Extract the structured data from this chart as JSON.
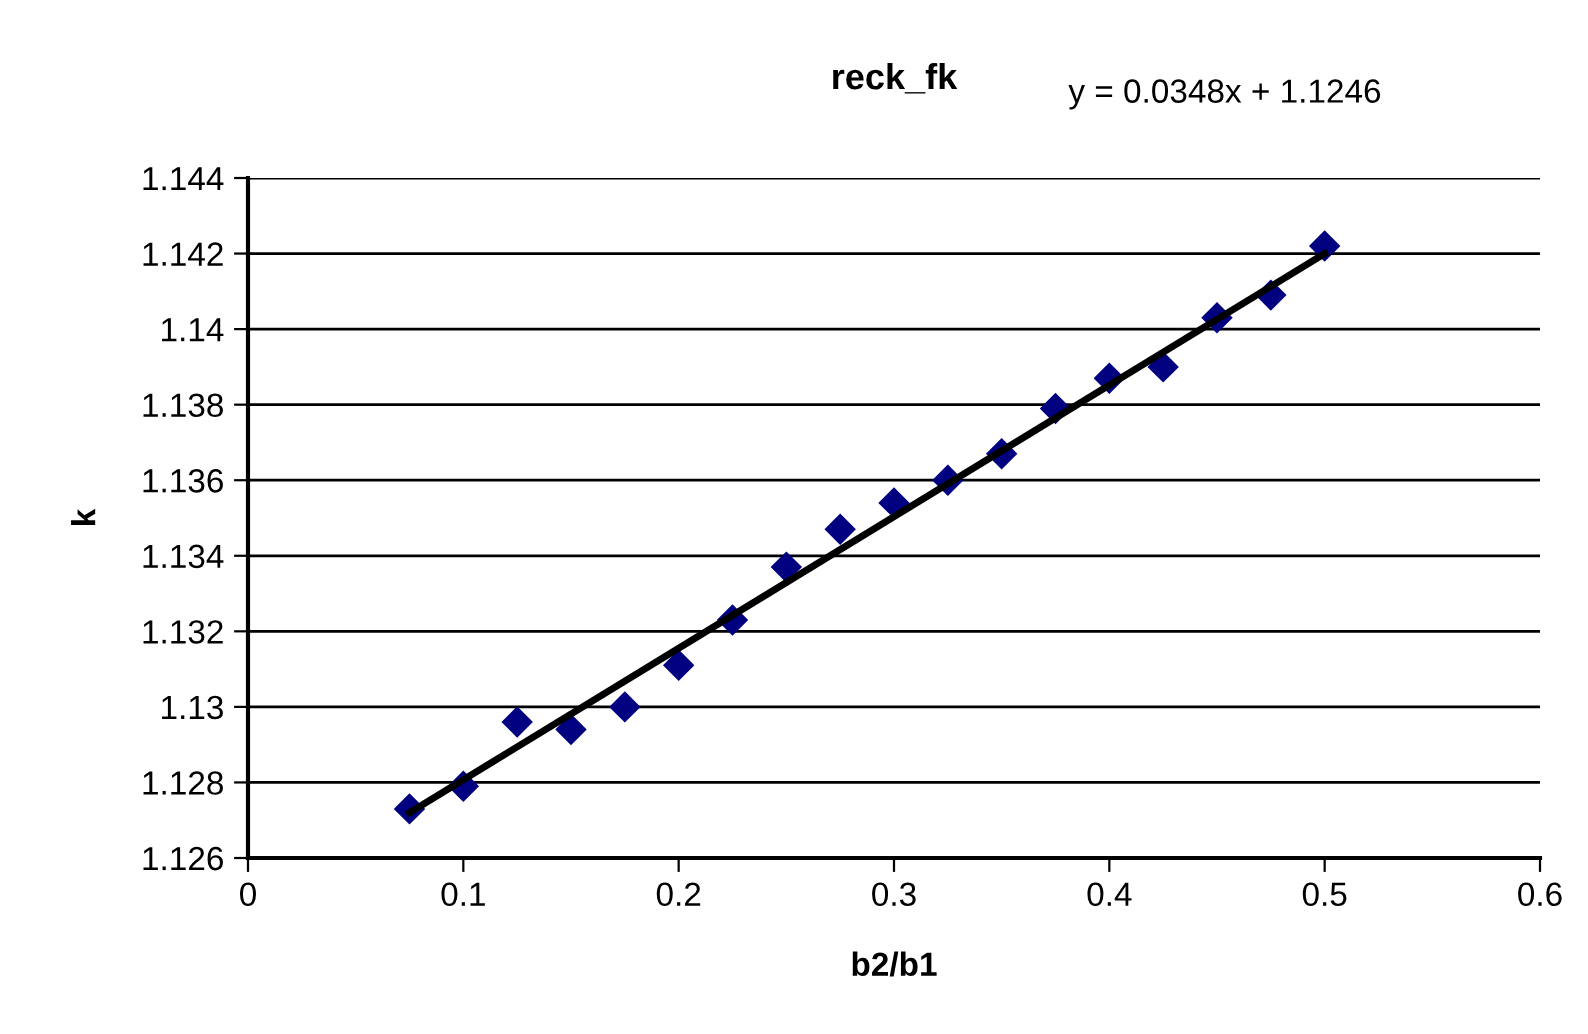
{
  "chart_data": {
    "type": "scatter",
    "title": "reck_fk",
    "xlabel": "b2/b1",
    "ylabel": "k",
    "annotations": [
      "y = 0.0348x + 1.1246"
    ],
    "x": [
      0.075,
      0.1,
      0.125,
      0.15,
      0.175,
      0.2,
      0.225,
      0.25,
      0.275,
      0.3,
      0.325,
      0.35,
      0.375,
      0.4,
      0.425,
      0.45,
      0.475,
      0.5
    ],
    "series": [
      {
        "color": "#000080",
        "marker": "diamond",
        "values": [
          1.1273,
          1.1279,
          1.1296,
          1.1294,
          1.13,
          1.1311,
          1.1323,
          1.1337,
          1.1347,
          1.1354,
          1.136,
          1.1367,
          1.1379,
          1.1387,
          1.139,
          1.1403,
          1.1409,
          1.1422
        ]
      },
      {
        "type": "line",
        "color": "#000000",
        "marker": "none",
        "line_style": "solid",
        "x": [
          0.075,
          0.5
        ],
        "values": [
          1.1272,
          1.142
        ]
      }
    ],
    "xlim": [
      0,
      0.6
    ],
    "xticks": [
      0,
      0.1,
      0.2,
      0.3,
      0.4,
      0.5,
      0.6
    ],
    "ylim": [
      1.126,
      1.144
    ],
    "yticks": [
      1.126,
      1.128,
      1.13,
      1.132,
      1.134,
      1.136,
      1.138,
      1.14,
      1.142,
      1.144
    ],
    "grid": "y",
    "legend": false
  }
}
